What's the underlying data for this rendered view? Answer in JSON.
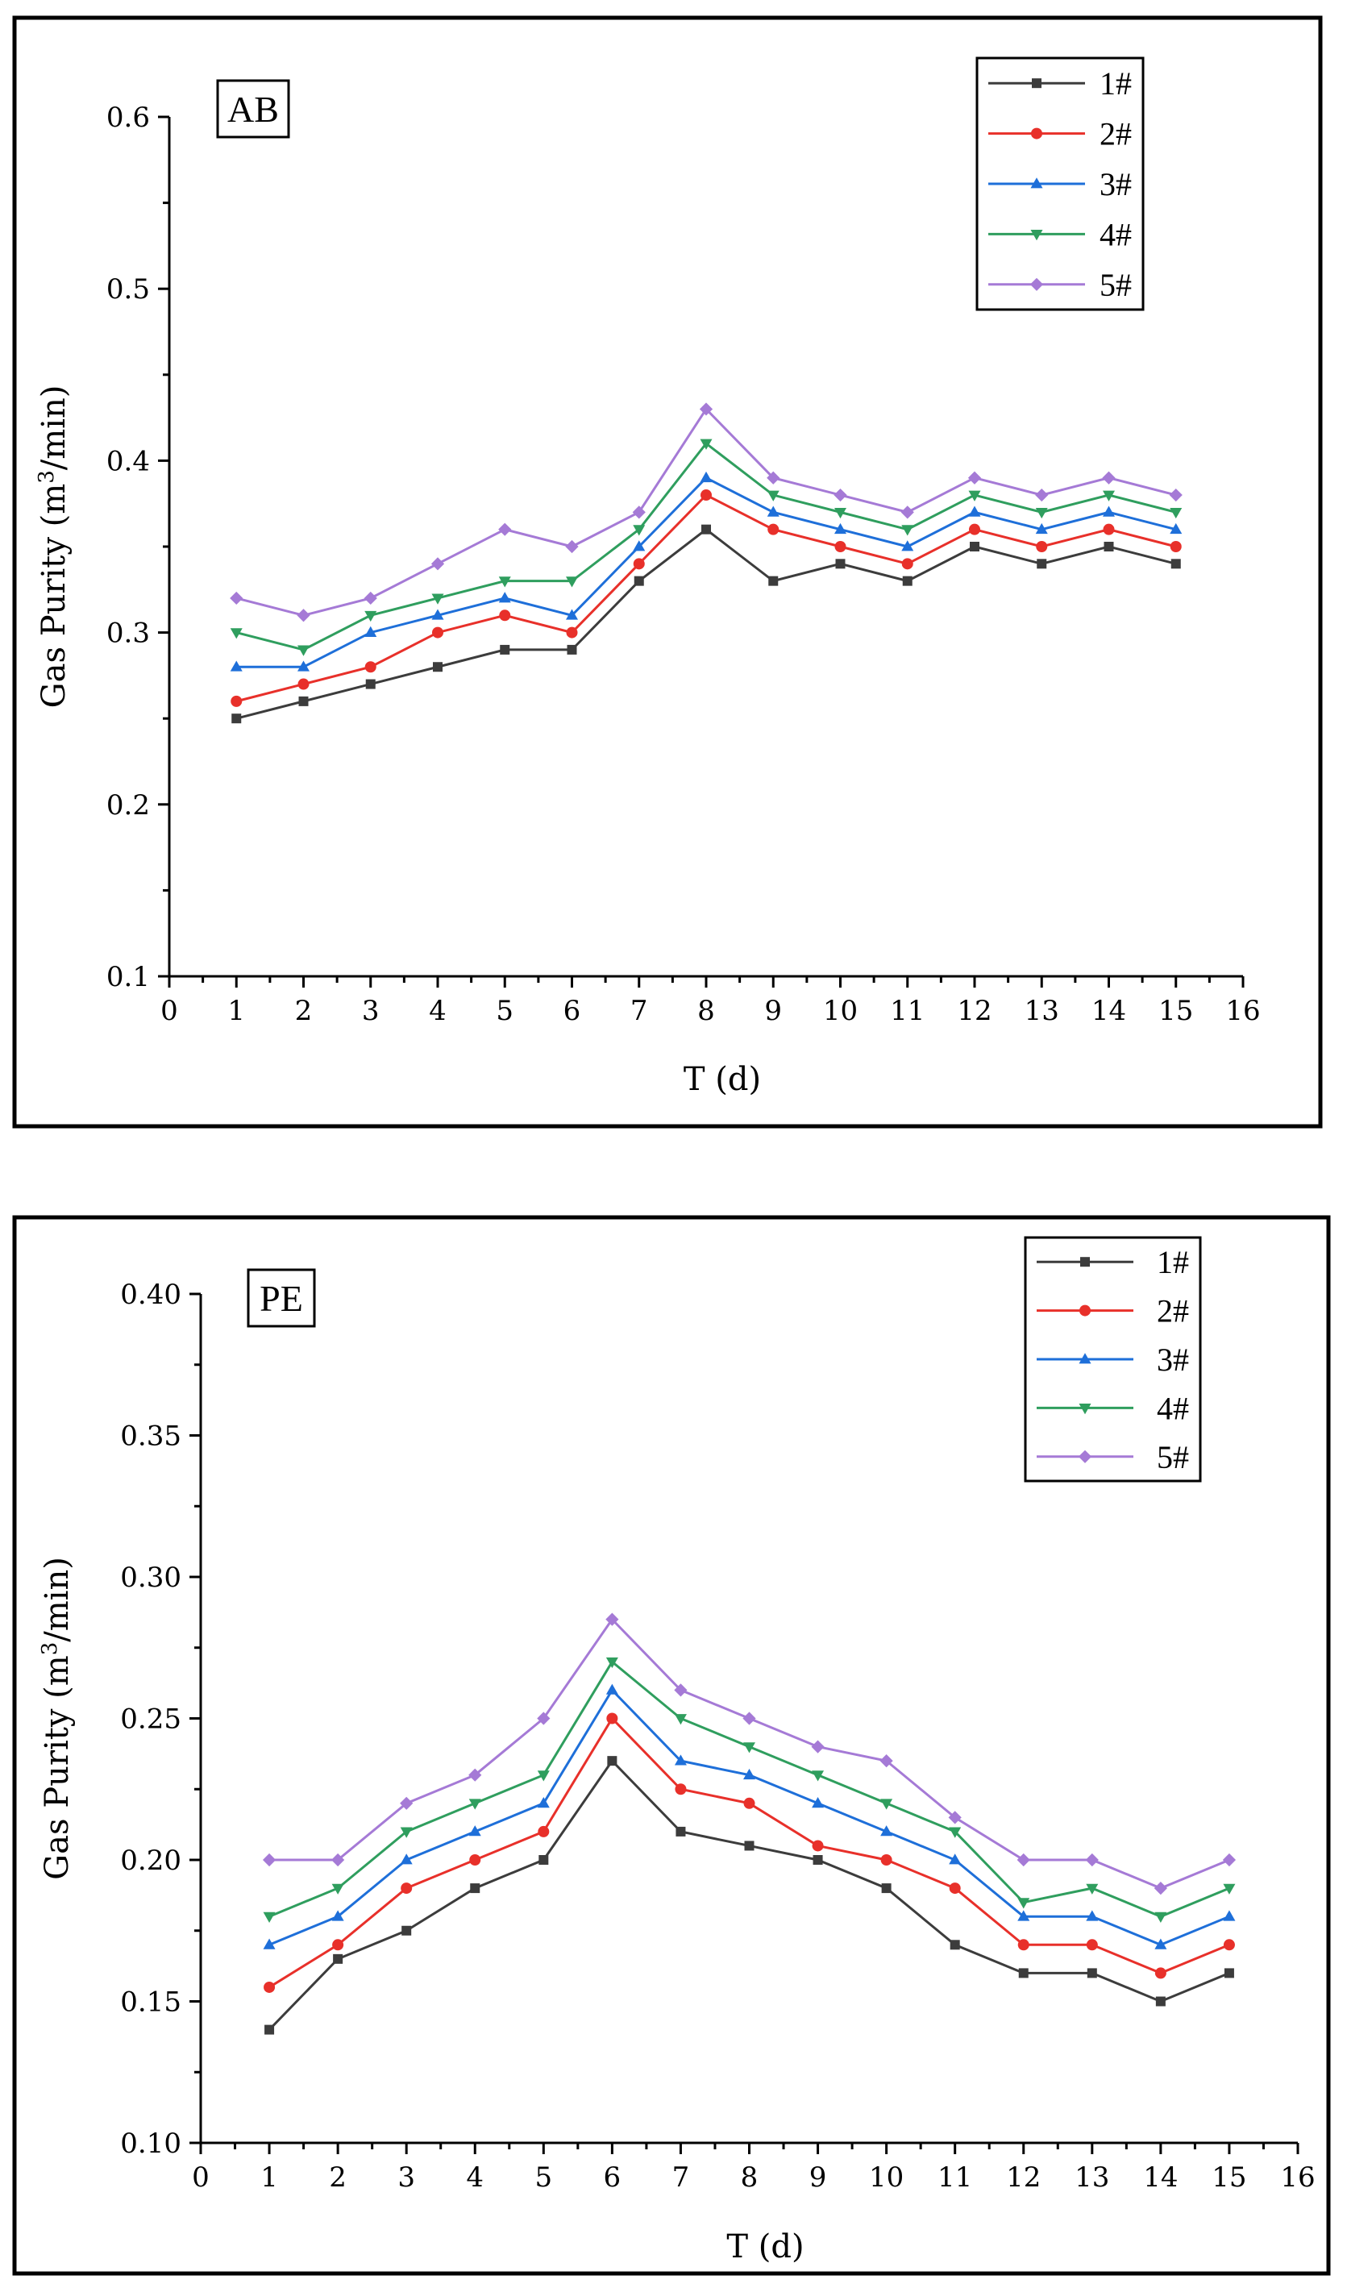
{
  "chart_data": [
    {
      "type": "line",
      "panel_label": "AB",
      "xlabel": "T (d)",
      "ylabel": "Gas Purity",
      "ylabel_unit_prefix": "(m",
      "ylabel_unit_sup": "3",
      "ylabel_unit_suffix": "/min)",
      "xlim": [
        0,
        16
      ],
      "ylim": [
        0.1,
        0.6
      ],
      "xticks": [
        0,
        1,
        2,
        3,
        4,
        5,
        6,
        7,
        8,
        9,
        10,
        11,
        12,
        13,
        14,
        15,
        16
      ],
      "yticks": [
        0.1,
        0.2,
        0.3,
        0.4,
        0.5,
        0.6
      ],
      "ytick_labels": [
        "0.1",
        "0.2",
        "0.3",
        "0.4",
        "0.5",
        "0.6"
      ],
      "x": [
        1,
        2,
        3,
        4,
        5,
        6,
        7,
        8,
        9,
        10,
        11,
        12,
        13,
        14,
        15
      ],
      "legend_position": "top-right",
      "series": [
        {
          "name": "1#",
          "color": "#3c3c3c",
          "marker": "square",
          "values": [
            0.25,
            0.26,
            0.27,
            0.28,
            0.29,
            0.29,
            0.33,
            0.36,
            0.33,
            0.34,
            0.33,
            0.35,
            0.34,
            0.35,
            0.34
          ]
        },
        {
          "name": "2#",
          "color": "#e8302a",
          "marker": "circle",
          "values": [
            0.26,
            0.27,
            0.28,
            0.3,
            0.31,
            0.3,
            0.34,
            0.38,
            0.36,
            0.35,
            0.34,
            0.36,
            0.35,
            0.36,
            0.35
          ]
        },
        {
          "name": "3#",
          "color": "#1e6fd9",
          "marker": "triangle-up",
          "values": [
            0.28,
            0.28,
            0.3,
            0.31,
            0.32,
            0.31,
            0.35,
            0.39,
            0.37,
            0.36,
            0.35,
            0.37,
            0.36,
            0.37,
            0.36
          ]
        },
        {
          "name": "4#",
          "color": "#2f9e5e",
          "marker": "triangle-down",
          "values": [
            0.3,
            0.29,
            0.31,
            0.32,
            0.33,
            0.33,
            0.36,
            0.41,
            0.38,
            0.37,
            0.36,
            0.38,
            0.37,
            0.38,
            0.37
          ]
        },
        {
          "name": "5#",
          "color": "#a57ad6",
          "marker": "diamond",
          "values": [
            0.32,
            0.31,
            0.32,
            0.34,
            0.36,
            0.35,
            0.37,
            0.43,
            0.39,
            0.38,
            0.37,
            0.39,
            0.38,
            0.39,
            0.38
          ]
        }
      ]
    },
    {
      "type": "line",
      "panel_label": "PE",
      "xlabel": "T (d)",
      "ylabel": "Gas Purity",
      "ylabel_unit_prefix": "(m",
      "ylabel_unit_sup": "3",
      "ylabel_unit_suffix": "/min)",
      "xlim": [
        0,
        16
      ],
      "ylim": [
        0.1,
        0.4
      ],
      "xticks": [
        0,
        1,
        2,
        3,
        4,
        5,
        6,
        7,
        8,
        9,
        10,
        11,
        12,
        13,
        14,
        15,
        16
      ],
      "yticks": [
        0.1,
        0.15,
        0.2,
        0.25,
        0.3,
        0.35,
        0.4
      ],
      "ytick_labels": [
        "0.10",
        "0.15",
        "0.20",
        "0.25",
        "0.30",
        "0.35",
        "0.40"
      ],
      "x": [
        1,
        2,
        3,
        4,
        5,
        6,
        7,
        8,
        9,
        10,
        11,
        12,
        13,
        14,
        15
      ],
      "legend_position": "top-right",
      "series": [
        {
          "name": "1#",
          "color": "#3c3c3c",
          "marker": "square",
          "values": [
            0.14,
            0.165,
            0.175,
            0.19,
            0.2,
            0.235,
            0.21,
            0.205,
            0.2,
            0.19,
            0.17,
            0.16,
            0.16,
            0.15,
            0.16
          ]
        },
        {
          "name": "2#",
          "color": "#e8302a",
          "marker": "circle",
          "values": [
            0.155,
            0.17,
            0.19,
            0.2,
            0.21,
            0.25,
            0.225,
            0.22,
            0.205,
            0.2,
            0.19,
            0.17,
            0.17,
            0.16,
            0.17
          ]
        },
        {
          "name": "3#",
          "color": "#1e6fd9",
          "marker": "triangle-up",
          "values": [
            0.17,
            0.18,
            0.2,
            0.21,
            0.22,
            0.26,
            0.235,
            0.23,
            0.22,
            0.21,
            0.2,
            0.18,
            0.18,
            0.17,
            0.18
          ]
        },
        {
          "name": "4#",
          "color": "#2f9e5e",
          "marker": "triangle-down",
          "values": [
            0.18,
            0.19,
            0.21,
            0.22,
            0.23,
            0.27,
            0.25,
            0.24,
            0.23,
            0.22,
            0.21,
            0.185,
            0.19,
            0.18,
            0.19
          ]
        },
        {
          "name": "5#",
          "color": "#a57ad6",
          "marker": "diamond",
          "values": [
            0.2,
            0.2,
            0.22,
            0.23,
            0.25,
            0.285,
            0.26,
            0.25,
            0.24,
            0.235,
            0.215,
            0.2,
            0.2,
            0.19,
            0.2
          ]
        }
      ]
    }
  ]
}
